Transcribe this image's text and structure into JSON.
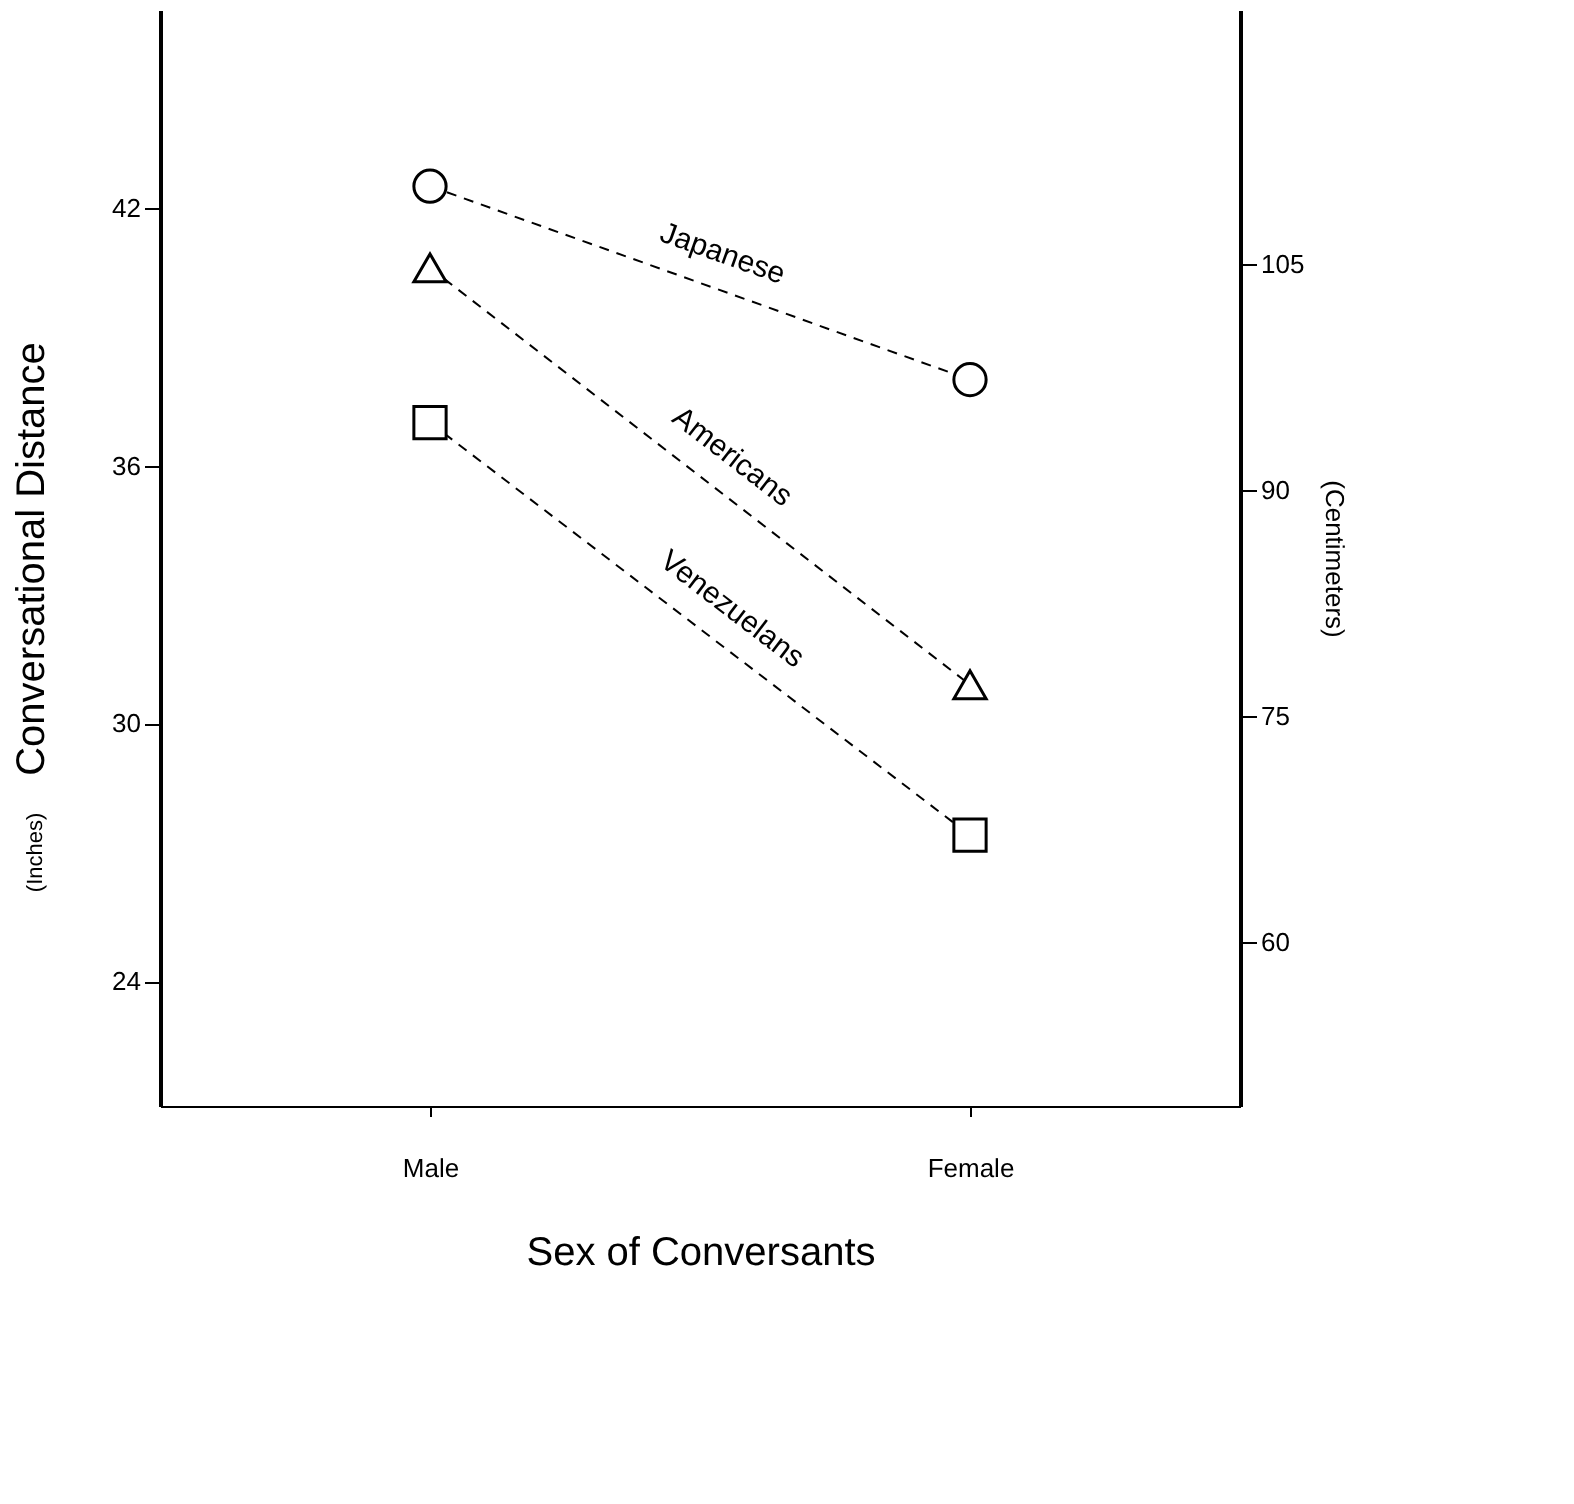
{
  "chart_data": {
    "type": "line",
    "xlabel": "Sex of Conversants",
    "ylabel": "Conversational Distance",
    "y2label": "(Centimeters)",
    "annotations": [
      "(Inches)"
    ],
    "categories": [
      "Male",
      "Female"
    ],
    "series": [
      {
        "name": "Japanese",
        "color": "#000000",
        "marker": "circle",
        "values": [
          42.5,
          38.0
        ]
      },
      {
        "name": "Americans",
        "color": "#000000",
        "marker": "triangle",
        "values": [
          40.6,
          30.9
        ]
      },
      {
        "name": "Venezuelans",
        "color": "#000000",
        "marker": "square",
        "values": [
          37.0,
          27.4
        ]
      }
    ],
    "line_style": "dashed",
    "ylim": [
      21.1,
      46.6
    ],
    "yticks": [
      24,
      30,
      36,
      42
    ],
    "y2lim": [
      49.1,
      121.9
    ],
    "y2ticks": [
      60,
      75,
      90,
      105
    ]
  }
}
